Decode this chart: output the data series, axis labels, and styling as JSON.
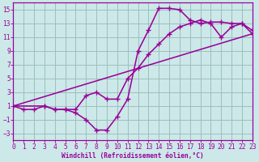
{
  "xlabel": "Windchill (Refroidissement éolien,°C)",
  "bg_color": "#cce8e8",
  "line_color": "#990099",
  "grid_color": "#99bbbb",
  "xlim": [
    0,
    23
  ],
  "ylim": [
    -4,
    16
  ],
  "xticks": [
    0,
    1,
    2,
    3,
    4,
    5,
    6,
    7,
    8,
    9,
    10,
    11,
    12,
    13,
    14,
    15,
    16,
    17,
    18,
    19,
    20,
    21,
    22,
    23
  ],
  "yticks": [
    -3,
    -1,
    1,
    3,
    5,
    7,
    9,
    11,
    13,
    15
  ],
  "curve1_x": [
    0,
    1,
    2,
    3,
    4,
    5,
    6,
    7,
    8,
    9,
    10,
    11,
    12,
    13,
    14,
    15,
    16,
    17,
    18,
    19,
    20,
    21,
    22,
    23
  ],
  "curve1_y": [
    1.0,
    0.5,
    0.5,
    1.0,
    0.5,
    0.5,
    0.0,
    -1.0,
    -2.5,
    -2.5,
    -0.5,
    2.0,
    9.0,
    12.0,
    15.2,
    15.2,
    15.0,
    13.5,
    13.0,
    13.2,
    13.2,
    13.0,
    13.0,
    12.0
  ],
  "curve2_x": [
    0,
    3,
    4,
    5,
    6,
    7,
    8,
    9,
    10,
    11,
    12,
    13,
    14,
    15,
    16,
    17,
    18,
    19,
    20,
    21,
    22,
    23
  ],
  "curve2_y": [
    1.0,
    1.0,
    0.5,
    0.5,
    0.5,
    2.5,
    3.0,
    2.0,
    2.0,
    5.0,
    6.5,
    8.5,
    10.0,
    11.5,
    12.5,
    13.0,
    13.5,
    13.0,
    11.0,
    12.5,
    13.0,
    11.5
  ],
  "line_x": [
    0,
    23
  ],
  "line_y": [
    1.0,
    11.5
  ],
  "marker_size": 2.0,
  "lw": 0.9
}
